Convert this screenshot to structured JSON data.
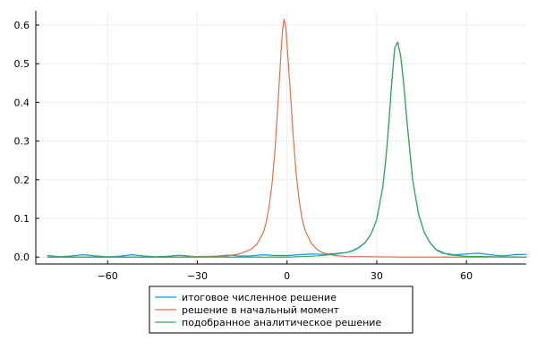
{
  "chart_data": {
    "type": "line",
    "title": "",
    "xlabel": "",
    "ylabel": "",
    "xlim": [
      -84,
      80
    ],
    "ylim": [
      -0.018,
      0.637
    ],
    "xticks": [
      -60,
      -30,
      0,
      30,
      60
    ],
    "xtick_labels": [
      "−60",
      "−30",
      "0",
      "30",
      "60"
    ],
    "yticks": [
      0.0,
      0.1,
      0.2,
      0.3,
      0.4,
      0.5,
      0.6
    ],
    "ytick_labels": [
      "0.0",
      "0.1",
      "0.2",
      "0.3",
      "0.4",
      "0.5",
      "0.6"
    ],
    "grid": true,
    "legend_position": "bottom-outside",
    "series": [
      {
        "name": "итоговое численное решение",
        "color": "#009AFA",
        "x": [
          -80,
          -76,
          -72,
          -68,
          -64,
          -60,
          -56,
          -52,
          -48,
          -44,
          -40,
          -36,
          -32,
          -28,
          -24,
          -20,
          -16,
          -12,
          -8,
          -4,
          0,
          4,
          8,
          12,
          16,
          20,
          22,
          24,
          26,
          28,
          30,
          32,
          33,
          34,
          35,
          36,
          37,
          38,
          39,
          40,
          42,
          44,
          46,
          48,
          50,
          52,
          56,
          60,
          64,
          68,
          72,
          76,
          80
        ],
        "y": [
          0.004,
          0.001,
          0.003,
          0.006,
          0.003,
          0.001,
          0.002,
          0.006,
          0.003,
          0.001,
          0.002,
          0.005,
          0.002,
          0.001,
          0.002,
          0.005,
          0.003,
          0.003,
          0.006,
          0.004,
          0.004,
          0.006,
          0.008,
          0.007,
          0.009,
          0.012,
          0.016,
          0.024,
          0.036,
          0.058,
          0.097,
          0.18,
          0.25,
          0.34,
          0.45,
          0.54,
          0.556,
          0.52,
          0.45,
          0.36,
          0.2,
          0.11,
          0.062,
          0.035,
          0.018,
          0.01,
          0.006,
          0.008,
          0.01,
          0.006,
          0.003,
          0.006,
          0.007
        ]
      },
      {
        "name": "решение в начальный момент",
        "color": "#E26F46",
        "x": [
          -80,
          -40,
          -20,
          -16,
          -12,
          -10,
          -8,
          -7,
          -6,
          -5,
          -4,
          -3,
          -2,
          -1.5,
          -1,
          -0.5,
          0,
          0.5,
          1,
          2,
          3,
          4,
          5,
          6,
          8,
          10,
          12,
          16,
          20,
          40,
          80
        ],
        "y": [
          0.0,
          0.0,
          0.003,
          0.008,
          0.02,
          0.034,
          0.062,
          0.088,
          0.13,
          0.19,
          0.28,
          0.4,
          0.53,
          0.585,
          0.615,
          0.6,
          0.55,
          0.495,
          0.44,
          0.32,
          0.22,
          0.15,
          0.1,
          0.07,
          0.037,
          0.02,
          0.011,
          0.004,
          0.0015,
          0.0,
          0.0
        ]
      },
      {
        "name": "подобранное аналитическое решение",
        "color": "#3DA44D",
        "x": [
          -80,
          0,
          10,
          16,
          20,
          22,
          24,
          26,
          28,
          30,
          32,
          33,
          34,
          35,
          36,
          37,
          38,
          39,
          40,
          42,
          44,
          46,
          48,
          50,
          54,
          60,
          70,
          80
        ],
        "y": [
          0.0,
          0.0,
          0.003,
          0.007,
          0.012,
          0.017,
          0.025,
          0.037,
          0.058,
          0.097,
          0.18,
          0.25,
          0.34,
          0.45,
          0.54,
          0.556,
          0.52,
          0.45,
          0.36,
          0.2,
          0.11,
          0.062,
          0.035,
          0.019,
          0.006,
          0.002,
          0.001,
          0.0
        ]
      }
    ]
  }
}
